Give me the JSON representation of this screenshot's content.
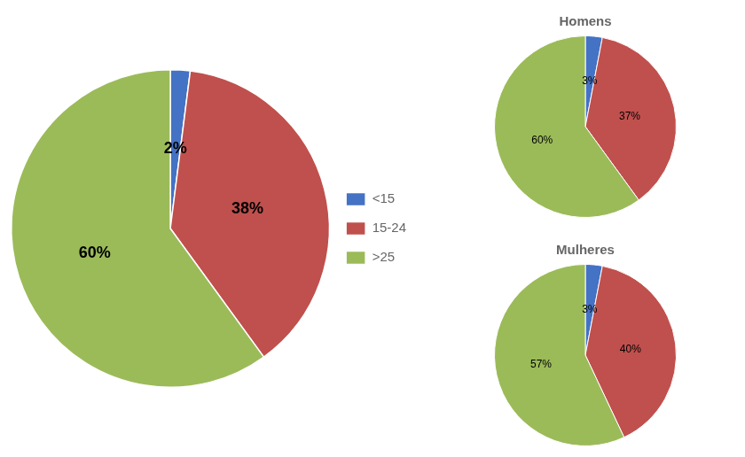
{
  "chart_data": [
    {
      "type": "pie",
      "categories": [
        "<15",
        "15-24",
        ">25"
      ],
      "values": [
        2,
        38,
        60
      ],
      "value_labels": [
        "2%",
        "38%",
        "60%"
      ],
      "colors": [
        "#4472C4",
        "#C0504D",
        "#9BBB59"
      ],
      "data_labels": true,
      "legend": "right"
    },
    {
      "type": "pie",
      "title": "Homens",
      "categories": [
        "<15",
        "15-24",
        ">25"
      ],
      "values": [
        3,
        37,
        60
      ],
      "value_labels": [
        "3%",
        "37%",
        "60%"
      ],
      "colors": [
        "#4472C4",
        "#C0504D",
        "#9BBB59"
      ],
      "data_labels": true
    },
    {
      "type": "pie",
      "title": "Mulheres",
      "categories": [
        "<15",
        "15-24",
        ">25"
      ],
      "values": [
        3,
        40,
        57
      ],
      "value_labels": [
        "3%",
        "40%",
        "57%"
      ],
      "colors": [
        "#4472C4",
        "#C0504D",
        "#9BBB59"
      ],
      "data_labels": true
    }
  ]
}
